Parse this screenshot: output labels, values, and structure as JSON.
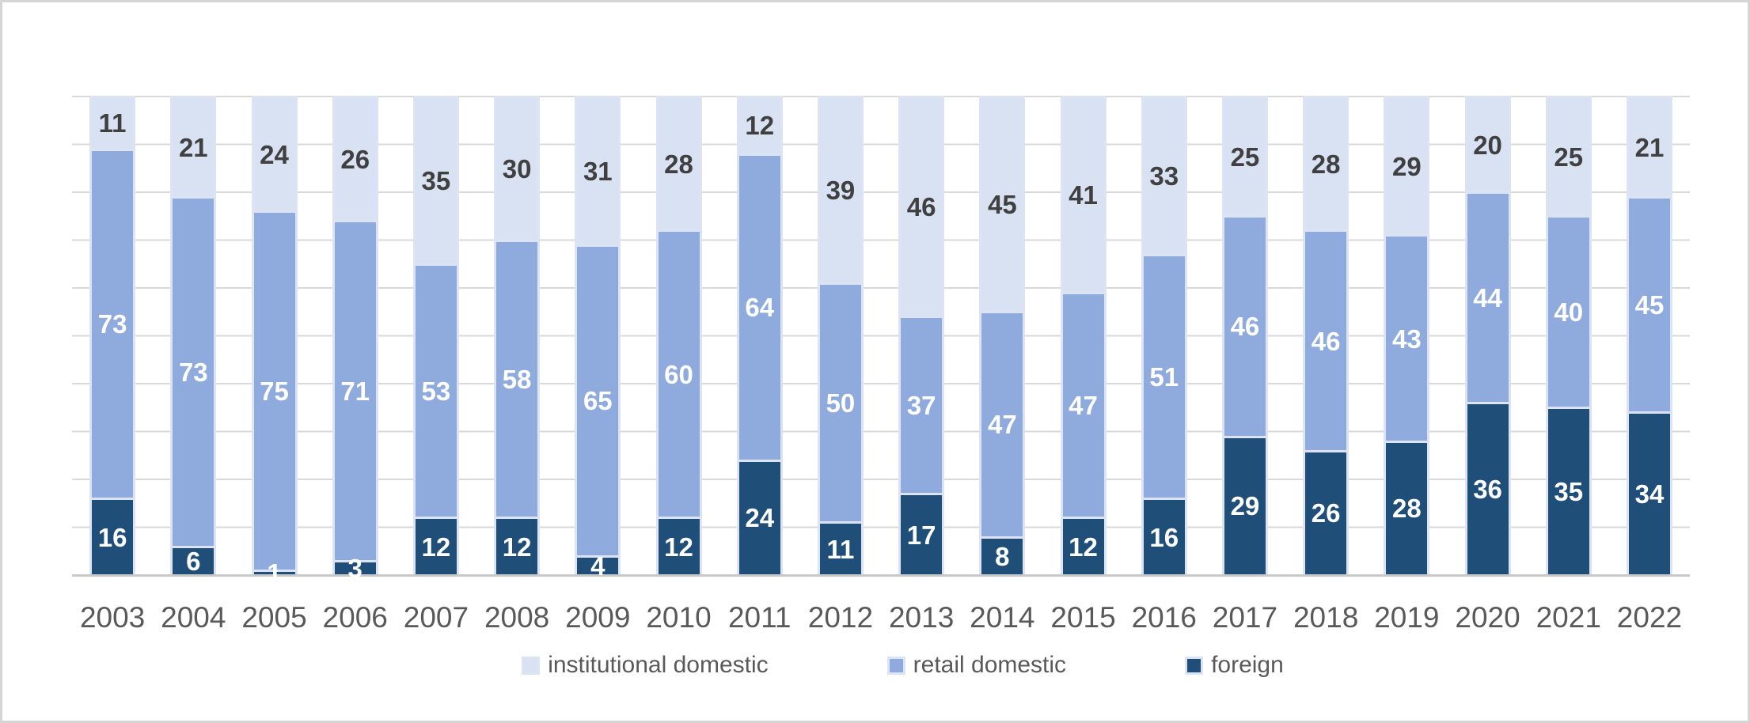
{
  "chart_data": {
    "type": "bar",
    "stacked": true,
    "title": "",
    "xlabel": "",
    "ylabel": "",
    "ylim": [
      0,
      100
    ],
    "gridlines": {
      "visible": true,
      "interval": 10,
      "color": "#d9d9d9"
    },
    "axis_line_color": "#c9c9c9",
    "legend_position": "bottom",
    "categories": [
      "2003",
      "2004",
      "2005",
      "2006",
      "2007",
      "2008",
      "2009",
      "2010",
      "2011",
      "2012",
      "2013",
      "2014",
      "2015",
      "2016",
      "2017",
      "2018",
      "2019",
      "2020",
      "2021",
      "2022"
    ],
    "series": [
      {
        "name": "institutional domestic",
        "color": "#d9e2f3",
        "label_color": "#404040",
        "values": [
          11,
          21,
          24,
          26,
          35,
          30,
          31,
          28,
          12,
          39,
          46,
          45,
          41,
          33,
          25,
          28,
          29,
          20,
          25,
          21
        ]
      },
      {
        "name": "retail domestic",
        "color": "#8faadc",
        "label_color": "#ffffff",
        "values": [
          73,
          73,
          75,
          71,
          53,
          58,
          65,
          60,
          64,
          50,
          37,
          47,
          47,
          51,
          46,
          46,
          43,
          44,
          40,
          45
        ]
      },
      {
        "name": "foreign",
        "color": "#1f4e79",
        "label_color": "#ffffff",
        "values": [
          16,
          6,
          1,
          3,
          12,
          12,
          4,
          12,
          24,
          11,
          17,
          8,
          12,
          16,
          29,
          26,
          28,
          36,
          35,
          34
        ]
      }
    ]
  },
  "styles": {
    "segment_border": "#dce4f4",
    "frame_border": "#d5d5d5",
    "xlabel_color": "#595959",
    "legend_text_color": "#595959"
  }
}
